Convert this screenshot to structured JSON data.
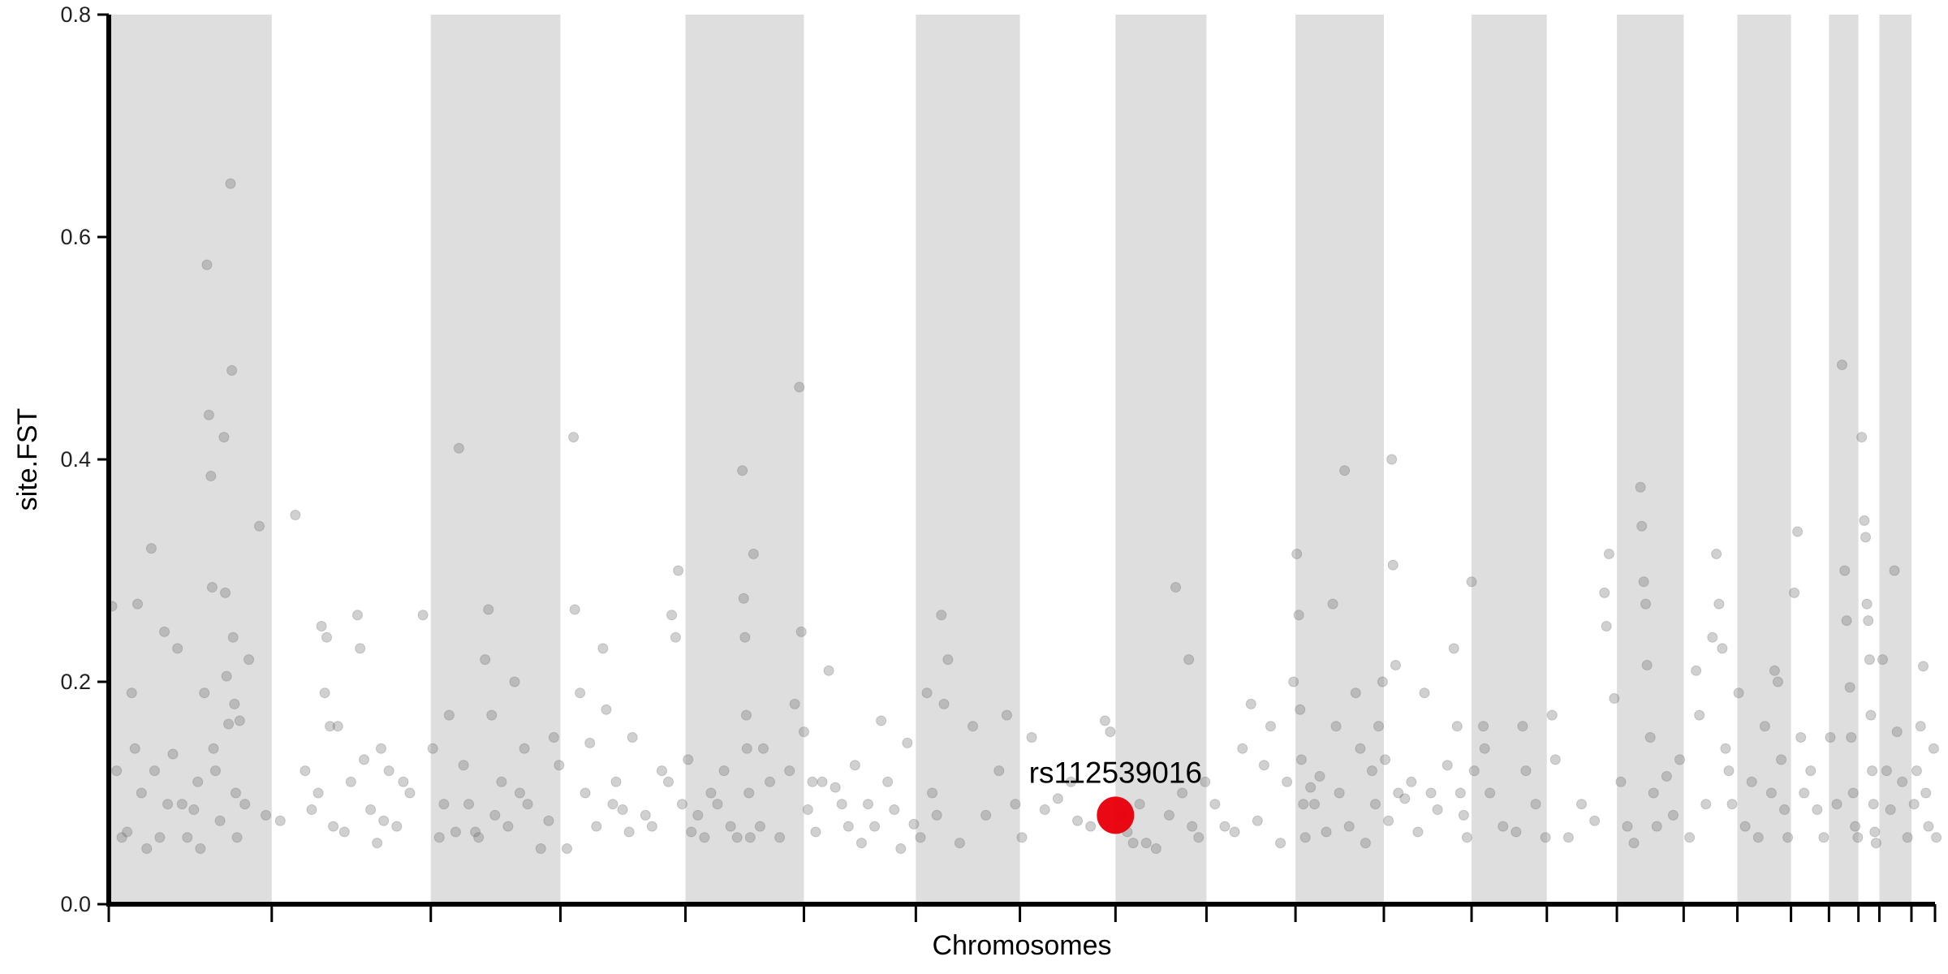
{
  "chart_data": {
    "type": "scatter",
    "title": "",
    "xlabel": "Chromosomes",
    "ylabel": "site.FST",
    "ylim": [
      0,
      0.8
    ],
    "yticks": [
      "0.0",
      "0.2",
      "0.4",
      "0.6",
      "0.8"
    ],
    "grid": false,
    "colors": {
      "point": "#777777",
      "band": "#dedede",
      "highlight": "#e8000b",
      "axis": "#000000"
    },
    "chromosomes": [
      {
        "start": 0,
        "end": 249,
        "shaded": true
      },
      {
        "start": 249,
        "end": 492,
        "shaded": false
      },
      {
        "start": 492,
        "end": 690,
        "shaded": true
      },
      {
        "start": 690,
        "end": 881,
        "shaded": false
      },
      {
        "start": 881,
        "end": 1062,
        "shaded": true
      },
      {
        "start": 1062,
        "end": 1233,
        "shaded": false
      },
      {
        "start": 1233,
        "end": 1392,
        "shaded": true
      },
      {
        "start": 1392,
        "end": 1538,
        "shaded": false
      },
      {
        "start": 1538,
        "end": 1677,
        "shaded": true
      },
      {
        "start": 1677,
        "end": 1813,
        "shaded": false
      },
      {
        "start": 1813,
        "end": 1948,
        "shaded": true
      },
      {
        "start": 1948,
        "end": 2082,
        "shaded": false
      },
      {
        "start": 2082,
        "end": 2197,
        "shaded": true
      },
      {
        "start": 2197,
        "end": 2304,
        "shaded": false
      },
      {
        "start": 2304,
        "end": 2406,
        "shaded": true
      },
      {
        "start": 2406,
        "end": 2488,
        "shaded": false
      },
      {
        "start": 2488,
        "end": 2570,
        "shaded": true
      },
      {
        "start": 2570,
        "end": 2628,
        "shaded": false
      },
      {
        "start": 2628,
        "end": 2673,
        "shaded": true
      },
      {
        "start": 2673,
        "end": 2705,
        "shaded": false
      },
      {
        "start": 2705,
        "end": 2754,
        "shaded": true
      },
      {
        "start": 2754,
        "end": 2790,
        "shaded": false
      }
    ],
    "highlight": {
      "label": "rs112539016",
      "x": 1538,
      "y": 0.08
    },
    "points": [
      [
        5,
        0.268
      ],
      [
        12,
        0.12
      ],
      [
        20,
        0.06
      ],
      [
        28,
        0.065
      ],
      [
        35,
        0.19
      ],
      [
        40,
        0.14
      ],
      [
        44,
        0.27
      ],
      [
        50,
        0.1
      ],
      [
        58,
        0.05
      ],
      [
        65,
        0.32
      ],
      [
        70,
        0.12
      ],
      [
        78,
        0.06
      ],
      [
        85,
        0.245
      ],
      [
        90,
        0.09
      ],
      [
        98,
        0.135
      ],
      [
        105,
        0.23
      ],
      [
        112,
        0.09
      ],
      [
        120,
        0.06
      ],
      [
        130,
        0.085
      ],
      [
        136,
        0.11
      ],
      [
        140,
        0.05
      ],
      [
        146,
        0.19
      ],
      [
        150,
        0.575
      ],
      [
        153,
        0.44
      ],
      [
        156,
        0.385
      ],
      [
        158,
        0.285
      ],
      [
        160,
        0.14
      ],
      [
        163,
        0.12
      ],
      [
        170,
        0.075
      ],
      [
        176,
        0.42
      ],
      [
        178,
        0.28
      ],
      [
        180,
        0.205
      ],
      [
        183,
        0.162
      ],
      [
        186,
        0.648
      ],
      [
        188,
        0.48
      ],
      [
        190,
        0.24
      ],
      [
        192,
        0.18
      ],
      [
        194,
        0.1
      ],
      [
        196,
        0.06
      ],
      [
        200,
        0.165
      ],
      [
        208,
        0.09
      ],
      [
        214,
        0.22
      ],
      [
        230,
        0.34
      ],
      [
        240,
        0.08
      ],
      [
        262,
        0.075
      ],
      [
        285,
        0.35
      ],
      [
        300,
        0.12
      ],
      [
        310,
        0.085
      ],
      [
        320,
        0.1
      ],
      [
        325,
        0.25
      ],
      [
        330,
        0.19
      ],
      [
        333,
        0.24
      ],
      [
        338,
        0.16
      ],
      [
        343,
        0.07
      ],
      [
        350,
        0.16
      ],
      [
        360,
        0.065
      ],
      [
        370,
        0.11
      ],
      [
        380,
        0.26
      ],
      [
        384,
        0.23
      ],
      [
        390,
        0.13
      ],
      [
        400,
        0.085
      ],
      [
        410,
        0.055
      ],
      [
        416,
        0.14
      ],
      [
        420,
        0.075
      ],
      [
        428,
        0.12
      ],
      [
        440,
        0.07
      ],
      [
        450,
        0.11
      ],
      [
        460,
        0.1
      ],
      [
        480,
        0.26
      ],
      [
        495,
        0.14
      ],
      [
        505,
        0.06
      ],
      [
        512,
        0.09
      ],
      [
        520,
        0.17
      ],
      [
        530,
        0.065
      ],
      [
        535,
        0.41
      ],
      [
        542,
        0.125
      ],
      [
        550,
        0.09
      ],
      [
        560,
        0.065
      ],
      [
        565,
        0.06
      ],
      [
        575,
        0.22
      ],
      [
        580,
        0.265
      ],
      [
        585,
        0.17
      ],
      [
        590,
        0.08
      ],
      [
        600,
        0.11
      ],
      [
        610,
        0.07
      ],
      [
        620,
        0.2
      ],
      [
        628,
        0.1
      ],
      [
        635,
        0.14
      ],
      [
        640,
        0.09
      ],
      [
        660,
        0.05
      ],
      [
        672,
        0.075
      ],
      [
        680,
        0.15
      ],
      [
        688,
        0.125
      ],
      [
        700,
        0.05
      ],
      [
        710,
        0.42
      ],
      [
        712,
        0.265
      ],
      [
        720,
        0.19
      ],
      [
        728,
        0.1
      ],
      [
        735,
        0.145
      ],
      [
        745,
        0.07
      ],
      [
        755,
        0.23
      ],
      [
        760,
        0.175
      ],
      [
        770,
        0.09
      ],
      [
        775,
        0.11
      ],
      [
        785,
        0.085
      ],
      [
        795,
        0.065
      ],
      [
        800,
        0.15
      ],
      [
        820,
        0.08
      ],
      [
        830,
        0.07
      ],
      [
        845,
        0.12
      ],
      [
        855,
        0.11
      ],
      [
        860,
        0.26
      ],
      [
        866,
        0.24
      ],
      [
        870,
        0.3
      ],
      [
        876,
        0.09
      ],
      [
        885,
        0.13
      ],
      [
        890,
        0.065
      ],
      [
        900,
        0.08
      ],
      [
        910,
        0.06
      ],
      [
        920,
        0.1
      ],
      [
        930,
        0.09
      ],
      [
        940,
        0.12
      ],
      [
        950,
        0.07
      ],
      [
        960,
        0.06
      ],
      [
        968,
        0.39
      ],
      [
        970,
        0.275
      ],
      [
        972,
        0.24
      ],
      [
        974,
        0.17
      ],
      [
        975,
        0.14
      ],
      [
        978,
        0.1
      ],
      [
        980,
        0.06
      ],
      [
        985,
        0.315
      ],
      [
        995,
        0.07
      ],
      [
        1000,
        0.14
      ],
      [
        1010,
        0.11
      ],
      [
        1025,
        0.06
      ],
      [
        1040,
        0.12
      ],
      [
        1048,
        0.18
      ],
      [
        1055,
        0.465
      ],
      [
        1058,
        0.245
      ],
      [
        1062,
        0.155
      ],
      [
        1068,
        0.085
      ],
      [
        1075,
        0.11
      ],
      [
        1080,
        0.065
      ],
      [
        1090,
        0.11
      ],
      [
        1100,
        0.21
      ],
      [
        1110,
        0.105
      ],
      [
        1120,
        0.09
      ],
      [
        1130,
        0.07
      ],
      [
        1140,
        0.125
      ],
      [
        1150,
        0.055
      ],
      [
        1160,
        0.09
      ],
      [
        1170,
        0.07
      ],
      [
        1180,
        0.165
      ],
      [
        1190,
        0.11
      ],
      [
        1200,
        0.085
      ],
      [
        1210,
        0.05
      ],
      [
        1220,
        0.145
      ],
      [
        1230,
        0.072
      ],
      [
        1240,
        0.06
      ],
      [
        1250,
        0.19
      ],
      [
        1258,
        0.1
      ],
      [
        1265,
        0.08
      ],
      [
        1272,
        0.26
      ],
      [
        1276,
        0.18
      ],
      [
        1282,
        0.22
      ],
      [
        1300,
        0.055
      ],
      [
        1320,
        0.16
      ],
      [
        1340,
        0.08
      ],
      [
        1360,
        0.12
      ],
      [
        1372,
        0.17
      ],
      [
        1385,
        0.09
      ],
      [
        1395,
        0.06
      ],
      [
        1410,
        0.15
      ],
      [
        1430,
        0.085
      ],
      [
        1450,
        0.095
      ],
      [
        1470,
        0.11
      ],
      [
        1480,
        0.075
      ],
      [
        1500,
        0.07
      ],
      [
        1522,
        0.165
      ],
      [
        1530,
        0.155
      ],
      [
        1548,
        0.08
      ],
      [
        1556,
        0.065
      ],
      [
        1565,
        0.055
      ],
      [
        1575,
        0.09
      ],
      [
        1585,
        0.055
      ],
      [
        1600,
        0.05
      ],
      [
        1620,
        0.08
      ],
      [
        1630,
        0.285
      ],
      [
        1640,
        0.1
      ],
      [
        1650,
        0.22
      ],
      [
        1655,
        0.07
      ],
      [
        1665,
        0.06
      ],
      [
        1675,
        0.11
      ],
      [
        1690,
        0.09
      ],
      [
        1705,
        0.07
      ],
      [
        1720,
        0.065
      ],
      [
        1732,
        0.14
      ],
      [
        1745,
        0.18
      ],
      [
        1755,
        0.075
      ],
      [
        1765,
        0.125
      ],
      [
        1775,
        0.16
      ],
      [
        1790,
        0.055
      ],
      [
        1800,
        0.11
      ],
      [
        1810,
        0.2
      ],
      [
        1815,
        0.315
      ],
      [
        1818,
        0.26
      ],
      [
        1820,
        0.175
      ],
      [
        1822,
        0.13
      ],
      [
        1825,
        0.09
      ],
      [
        1828,
        0.06
      ],
      [
        1836,
        0.105
      ],
      [
        1842,
        0.09
      ],
      [
        1850,
        0.115
      ],
      [
        1860,
        0.065
      ],
      [
        1870,
        0.27
      ],
      [
        1875,
        0.16
      ],
      [
        1880,
        0.1
      ],
      [
        1888,
        0.39
      ],
      [
        1895,
        0.07
      ],
      [
        1905,
        0.19
      ],
      [
        1912,
        0.14
      ],
      [
        1920,
        0.055
      ],
      [
        1930,
        0.12
      ],
      [
        1935,
        0.09
      ],
      [
        1940,
        0.16
      ],
      [
        1946,
        0.2
      ],
      [
        1950,
        0.13
      ],
      [
        1955,
        0.075
      ],
      [
        1960,
        0.4
      ],
      [
        1962,
        0.305
      ],
      [
        1966,
        0.215
      ],
      [
        1970,
        0.1
      ],
      [
        1980,
        0.095
      ],
      [
        1990,
        0.11
      ],
      [
        2000,
        0.065
      ],
      [
        2010,
        0.19
      ],
      [
        2020,
        0.1
      ],
      [
        2030,
        0.085
      ],
      [
        2045,
        0.125
      ],
      [
        2055,
        0.23
      ],
      [
        2060,
        0.16
      ],
      [
        2065,
        0.1
      ],
      [
        2070,
        0.08
      ],
      [
        2075,
        0.06
      ],
      [
        2082,
        0.29
      ],
      [
        2086,
        0.12
      ],
      [
        2100,
        0.16
      ],
      [
        2102,
        0.14
      ],
      [
        2110,
        0.1
      ],
      [
        2130,
        0.07
      ],
      [
        2150,
        0.065
      ],
      [
        2160,
        0.16
      ],
      [
        2165,
        0.12
      ],
      [
        2180,
        0.09
      ],
      [
        2195,
        0.06
      ],
      [
        2205,
        0.17
      ],
      [
        2210,
        0.13
      ],
      [
        2230,
        0.06
      ],
      [
        2250,
        0.09
      ],
      [
        2270,
        0.075
      ],
      [
        2285,
        0.28
      ],
      [
        2288,
        0.25
      ],
      [
        2292,
        0.315
      ],
      [
        2300,
        0.185
      ],
      [
        2310,
        0.11
      ],
      [
        2320,
        0.07
      ],
      [
        2330,
        0.055
      ],
      [
        2340,
        0.375
      ],
      [
        2342,
        0.34
      ],
      [
        2345,
        0.29
      ],
      [
        2348,
        0.27
      ],
      [
        2350,
        0.215
      ],
      [
        2355,
        0.15
      ],
      [
        2360,
        0.1
      ],
      [
        2365,
        0.07
      ],
      [
        2380,
        0.115
      ],
      [
        2390,
        0.08
      ],
      [
        2400,
        0.13
      ],
      [
        2415,
        0.06
      ],
      [
        2425,
        0.21
      ],
      [
        2430,
        0.17
      ],
      [
        2440,
        0.09
      ],
      [
        2450,
        0.24
      ],
      [
        2456,
        0.315
      ],
      [
        2460,
        0.27
      ],
      [
        2465,
        0.23
      ],
      [
        2470,
        0.14
      ],
      [
        2475,
        0.12
      ],
      [
        2480,
        0.09
      ],
      [
        2490,
        0.19
      ],
      [
        2500,
        0.07
      ],
      [
        2510,
        0.11
      ],
      [
        2520,
        0.06
      ],
      [
        2530,
        0.16
      ],
      [
        2540,
        0.1
      ],
      [
        2545,
        0.21
      ],
      [
        2550,
        0.2
      ],
      [
        2555,
        0.13
      ],
      [
        2560,
        0.085
      ],
      [
        2565,
        0.06
      ],
      [
        2575,
        0.28
      ],
      [
        2580,
        0.335
      ],
      [
        2585,
        0.15
      ],
      [
        2590,
        0.1
      ],
      [
        2600,
        0.12
      ],
      [
        2610,
        0.085
      ],
      [
        2620,
        0.06
      ],
      [
        2630,
        0.15
      ],
      [
        2640,
        0.09
      ],
      [
        2648,
        0.485
      ],
      [
        2652,
        0.3
      ],
      [
        2655,
        0.255
      ],
      [
        2660,
        0.195
      ],
      [
        2662,
        0.15
      ],
      [
        2665,
        0.1
      ],
      [
        2668,
        0.07
      ],
      [
        2672,
        0.06
      ],
      [
        2678,
        0.42
      ],
      [
        2682,
        0.345
      ],
      [
        2684,
        0.33
      ],
      [
        2686,
        0.27
      ],
      [
        2688,
        0.255
      ],
      [
        2690,
        0.22
      ],
      [
        2692,
        0.17
      ],
      [
        2694,
        0.12
      ],
      [
        2696,
        0.09
      ],
      [
        2698,
        0.065
      ],
      [
        2700,
        0.055
      ],
      [
        2710,
        0.22
      ],
      [
        2716,
        0.12
      ],
      [
        2722,
        0.085
      ],
      [
        2728,
        0.3
      ],
      [
        2732,
        0.155
      ],
      [
        2740,
        0.11
      ],
      [
        2748,
        0.06
      ],
      [
        2758,
        0.09
      ],
      [
        2762,
        0.12
      ],
      [
        2768,
        0.16
      ],
      [
        2772,
        0.214
      ],
      [
        2776,
        0.1
      ],
      [
        2780,
        0.07
      ],
      [
        2788,
        0.14
      ],
      [
        2792,
        0.06
      ]
    ]
  }
}
